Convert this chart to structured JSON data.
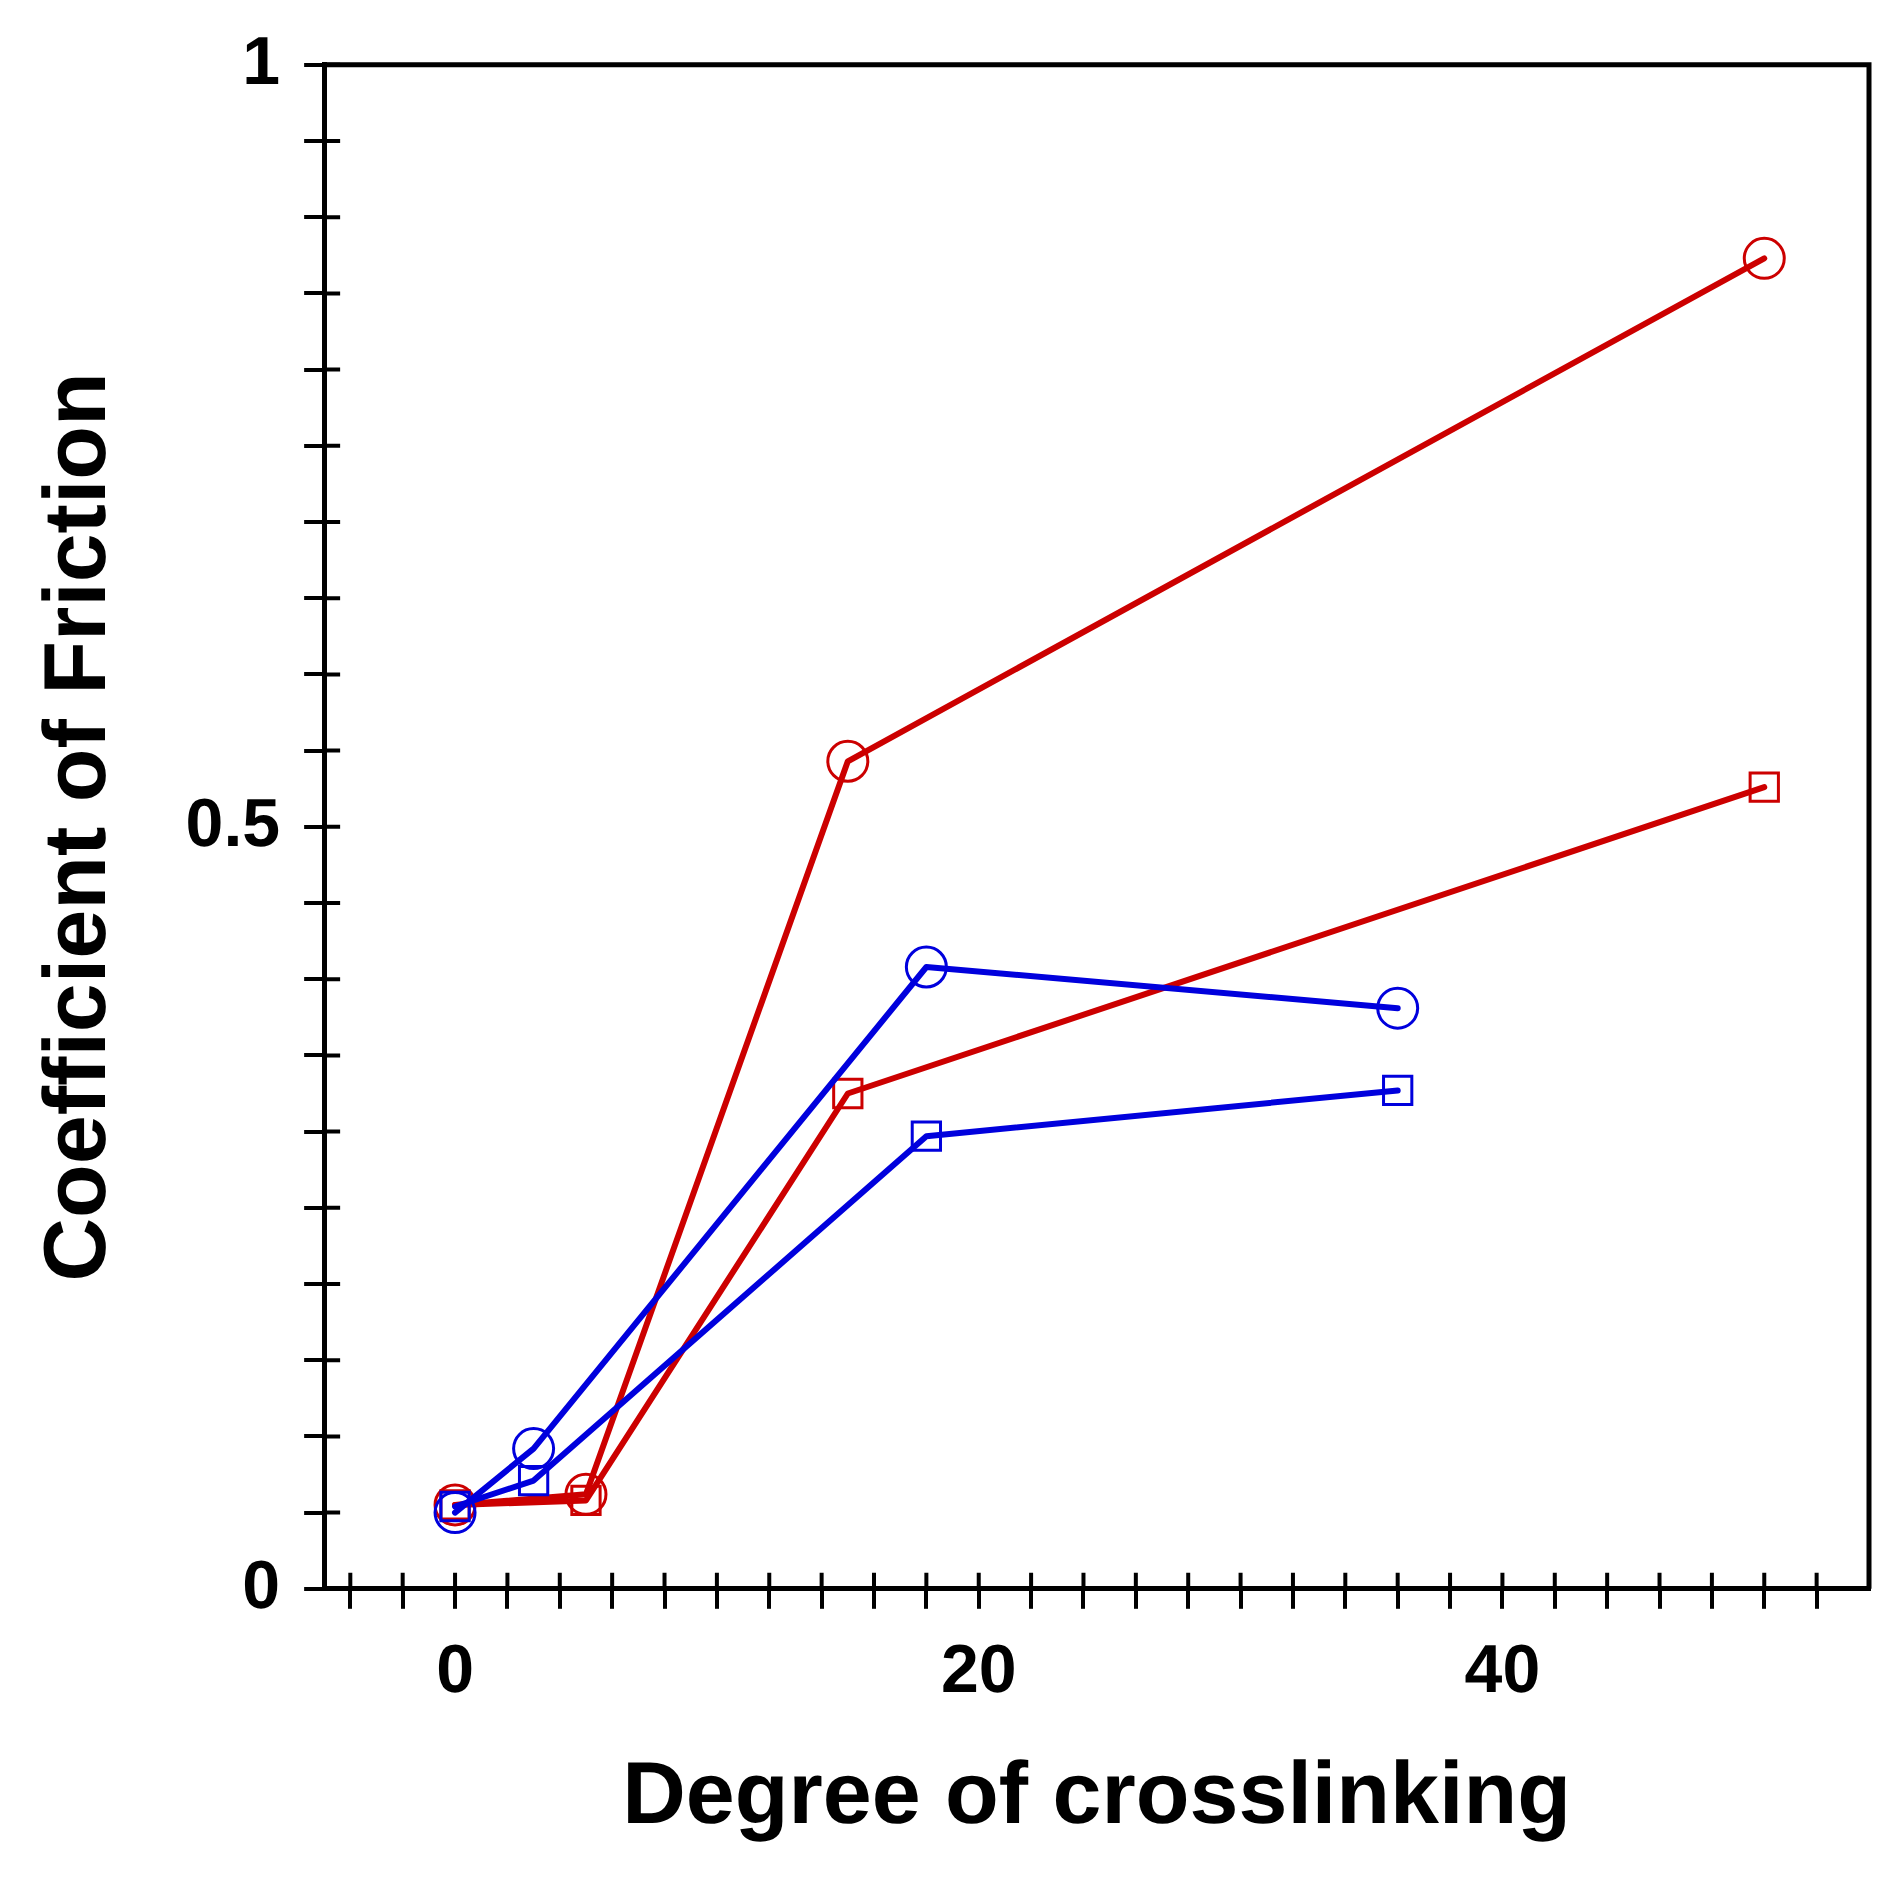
{
  "chart_data": {
    "type": "line",
    "xlabel": "Degree of crosslinking",
    "ylabel": "Coefficient of Friction",
    "xlim": [
      -5,
      54
    ],
    "ylim": [
      0,
      1
    ],
    "xticks": [
      {
        "value": -4,
        "label": null
      },
      {
        "value": -2,
        "label": null
      },
      0,
      {
        "value": 2,
        "label": null
      },
      {
        "value": 4,
        "label": null
      },
      {
        "value": 6,
        "label": null
      },
      {
        "value": 8,
        "label": null
      },
      {
        "value": 10,
        "label": null
      },
      {
        "value": 12,
        "label": null
      },
      {
        "value": 14,
        "label": null
      },
      {
        "value": 16,
        "label": null
      },
      {
        "value": 18,
        "label": null
      },
      20,
      {
        "value": 22,
        "label": null
      },
      {
        "value": 24,
        "label": null
      },
      {
        "value": 26,
        "label": null
      },
      {
        "value": 28,
        "label": null
      },
      {
        "value": 30,
        "label": null
      },
      {
        "value": 32,
        "label": null
      },
      {
        "value": 34,
        "label": null
      },
      {
        "value": 36,
        "label": null
      },
      {
        "value": 38,
        "label": null
      },
      40,
      {
        "value": 42,
        "label": null
      },
      {
        "value": 44,
        "label": null
      },
      {
        "value": 46,
        "label": null
      },
      {
        "value": 48,
        "label": null
      },
      {
        "value": 50,
        "label": null
      },
      {
        "value": 52,
        "label": null
      }
    ],
    "yticks": [
      0,
      {
        "value": 0.05,
        "label": null
      },
      {
        "value": 0.1,
        "label": null
      },
      {
        "value": 0.15,
        "label": null
      },
      {
        "value": 0.2,
        "label": null
      },
      {
        "value": 0.25,
        "label": null
      },
      {
        "value": 0.3,
        "label": null
      },
      {
        "value": 0.35,
        "label": null
      },
      {
        "value": 0.4,
        "label": null
      },
      {
        "value": 0.45,
        "label": null
      },
      0.5,
      {
        "value": 0.55,
        "label": null
      },
      {
        "value": 0.6,
        "label": null
      },
      {
        "value": 0.65,
        "label": null
      },
      {
        "value": 0.7,
        "label": null
      },
      {
        "value": 0.75,
        "label": null
      },
      {
        "value": 0.8,
        "label": null
      },
      {
        "value": 0.85,
        "label": null
      },
      {
        "value": 0.9,
        "label": null
      },
      {
        "value": 0.95,
        "label": null
      },
      1
    ],
    "grid": false,
    "legend": false,
    "line_style": "solid",
    "series": [
      {
        "color": "#cc0000",
        "marker": "circle",
        "x": [
          0,
          5,
          15,
          50
        ],
        "values": [
          0.055,
          0.062,
          0.543,
          0.873
        ]
      },
      {
        "color": "#cc0000",
        "marker": "square",
        "x": [
          0,
          5,
          15,
          50
        ],
        "values": [
          0.055,
          0.058,
          0.325,
          0.526
        ]
      },
      {
        "color": "#0000dd",
        "marker": "circle",
        "x": [
          0,
          3,
          18,
          36
        ],
        "values": [
          0.05,
          0.092,
          0.408,
          0.381
        ]
      },
      {
        "color": "#0000dd",
        "marker": "square",
        "x": [
          0,
          3,
          18,
          36
        ],
        "values": [
          0.054,
          0.071,
          0.297,
          0.327
        ]
      }
    ]
  }
}
